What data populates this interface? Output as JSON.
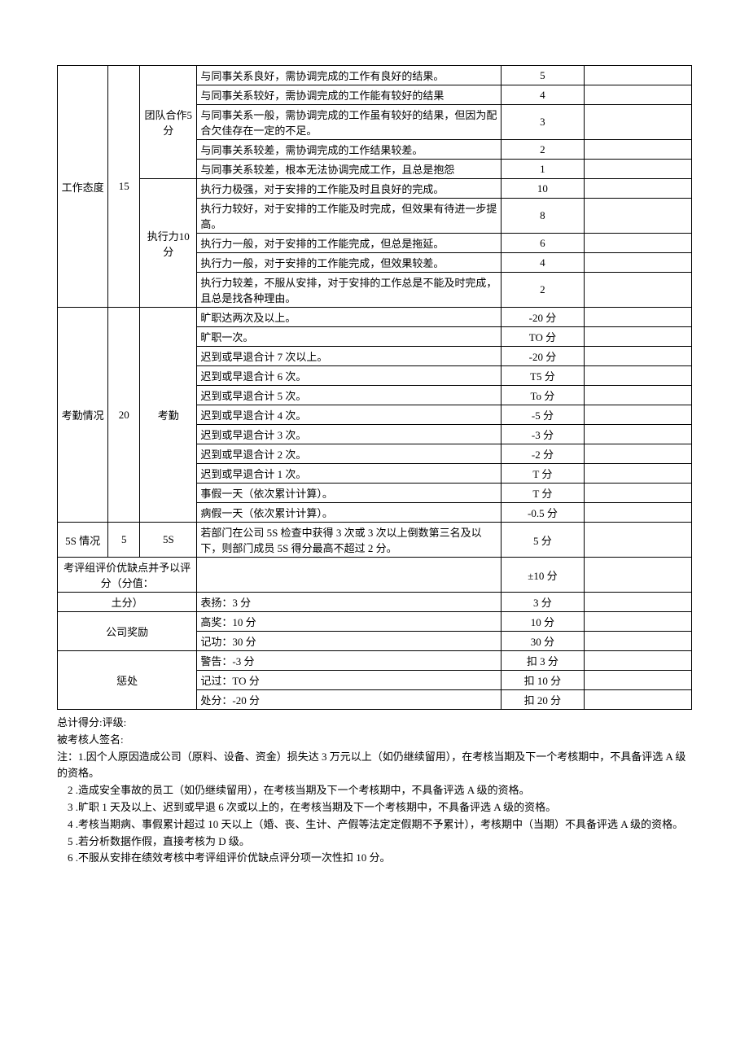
{
  "table": {
    "col_widths": [
      "8%",
      "5%",
      "9%",
      "48%",
      "13%",
      "17%"
    ],
    "blocks": [
      {
        "cat": "工作态度",
        "cat_score": "15",
        "subs": [
          {
            "name": "团队合作5分",
            "rows": [
              {
                "desc": "与同事关系良好，需协调完成的工作有良好的结果。",
                "score": "5"
              },
              {
                "desc": "与同事关系较好，需协调完成的工作能有较好的结果",
                "score": "4"
              },
              {
                "desc": "与同事关系一般，需协调完成的工作虽有较好的结果，但因为配合欠佳存在一定的不足。",
                "score": "3"
              },
              {
                "desc": "与同事关系较差，需协调完成的工作结果较差。",
                "score": "2"
              },
              {
                "desc": "与同事关系较差，根本无法协调完成工作，且总是抱怨",
                "score": "1"
              }
            ]
          },
          {
            "name": "执行力10分",
            "rows": [
              {
                "desc": "执行力极强，对于安排的工作能及时且良好的完成。",
                "score": "10"
              },
              {
                "desc": "执行力较好，对于安排的工作能及时完成，但效果有待进一步提高。",
                "score": "8"
              },
              {
                "desc": "执行力一般，对于安排的工作能完成，但总是拖延。",
                "score": "6"
              },
              {
                "desc": "执行力一般，对于安排的工作能完成，但效果较差。",
                "score": "4"
              },
              {
                "desc": "执行力较差，不服从安排，对于安排的工作总是不能及时完成，且总是找各种理由。",
                "score": "2"
              }
            ]
          }
        ]
      },
      {
        "cat": "考勤情况",
        "cat_score": "20",
        "subs": [
          {
            "name": "考勤",
            "rows": [
              {
                "desc": "旷职达两次及以上。",
                "score": "-20 分"
              },
              {
                "desc": "旷职一次。",
                "score": "TO 分"
              },
              {
                "desc": "迟到或早退合计 7 次以上。",
                "score": "-20 分"
              },
              {
                "desc": "迟到或早退合计 6 次。",
                "score": "T5 分"
              },
              {
                "desc": "迟到或早退合计 5 次。",
                "score": "To 分"
              },
              {
                "desc": "迟到或早退合计 4 次。",
                "score": "-5 分"
              },
              {
                "desc": "迟到或早退合计 3 次。",
                "score": "-3 分"
              },
              {
                "desc": "迟到或早退合计 2 次。",
                "score": "-2 分"
              },
              {
                "desc": "迟到或早退合计 1 次。",
                "score": "T 分"
              },
              {
                "desc": "事假一天（依次累计计算）。",
                "score": "T 分"
              },
              {
                "desc": "病假一天（依次累计计算）。",
                "score": "-0.5 分"
              }
            ]
          }
        ]
      },
      {
        "cat": "5S 情况",
        "cat_score": "5",
        "subs": [
          {
            "name": "5S",
            "rows": [
              {
                "desc": "若部门在公司 5S 检查中获得 3 次或 3 次以上倒数第三名及以下，则部门成员 5S 得分最高不超过 2 分。",
                "score": "5 分"
              }
            ]
          }
        ]
      }
    ],
    "eval_row": {
      "label": "考评组评价优缺点并予以评分（分值：",
      "desc": "",
      "score": "±10 分"
    },
    "reward_block": {
      "label_top": "土分）",
      "label_main": "公司奖励",
      "rows": [
        {
          "desc": "表扬：3 分",
          "score": "3 分"
        },
        {
          "desc": "高奖：10 分",
          "score": "10 分"
        },
        {
          "desc": "记功：30 分",
          "score": "30 分"
        }
      ]
    },
    "punish_block": {
      "label": "惩处",
      "rows": [
        {
          "desc": "警告：-3 分",
          "score": "扣 3 分"
        },
        {
          "desc": "记过：TO 分",
          "score": "扣 10 分"
        },
        {
          "desc": "处分：-20 分",
          "score": "扣 20 分"
        }
      ]
    }
  },
  "footer": {
    "line1": "总计得分:评级:",
    "line2": "被考核人签名:",
    "notes": [
      "注：1.因个人原因造成公司（原料、设备、资金）损失达 3 万元以上（如仍继续留用），在考核当期及下一个考核期中，不具备评选 A 级的资格。",
      "2 .造成安全事故的员工（如仍继续留用），在考核当期及下一个考核期中，不具备评选 A 级的资格。",
      "3 .旷职 1 天及以上、迟到或早退 6 次或以上的，在考核当期及下一个考核期中，不具备评选 A 级的资格。",
      "4 .考核当期病、事假累计超过 10 天以上（婚、丧、生计、产假等法定定假期不予累计），考核期中（当期）不具备评选 A 级的资格。",
      "5 .若分析数据作假，直接考核为 D 级。",
      "6 .不服从安排在绩效考核中考评组评价优缺点评分项一次性扣 10 分。"
    ]
  }
}
